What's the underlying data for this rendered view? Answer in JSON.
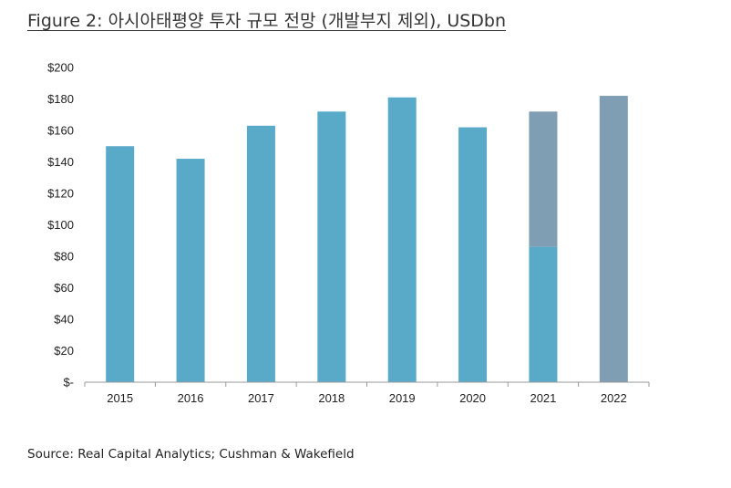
{
  "figure_title": "Figure 2: 아시아태평양 투자 규모 전망 (개발부지 제외), USDbn",
  "source": "Source: Real Capital Analytics; Cushman & Wakefield",
  "chart_data": {
    "type": "bar",
    "categories": [
      "2015",
      "2016",
      "2017",
      "2018",
      "2019",
      "2020",
      "2021",
      "2022"
    ],
    "series": [
      {
        "values": [
          150,
          142,
          163,
          172,
          181,
          162,
          86,
          0
        ],
        "color": "#59aac9"
      },
      {
        "values": [
          0,
          0,
          0,
          0,
          0,
          0,
          86,
          182
        ],
        "color": "#7f9db3"
      }
    ],
    "stacked": true,
    "ylim": [
      0,
      200
    ],
    "yticks": [
      0,
      20,
      40,
      60,
      80,
      100,
      120,
      140,
      160,
      180,
      200
    ],
    "ytick_labels": [
      "$-",
      "$20",
      "$40",
      "$60",
      "$80",
      "$100",
      "$120",
      "$140",
      "$160",
      "$180",
      "$200"
    ],
    "grid": false,
    "legend": "none"
  }
}
